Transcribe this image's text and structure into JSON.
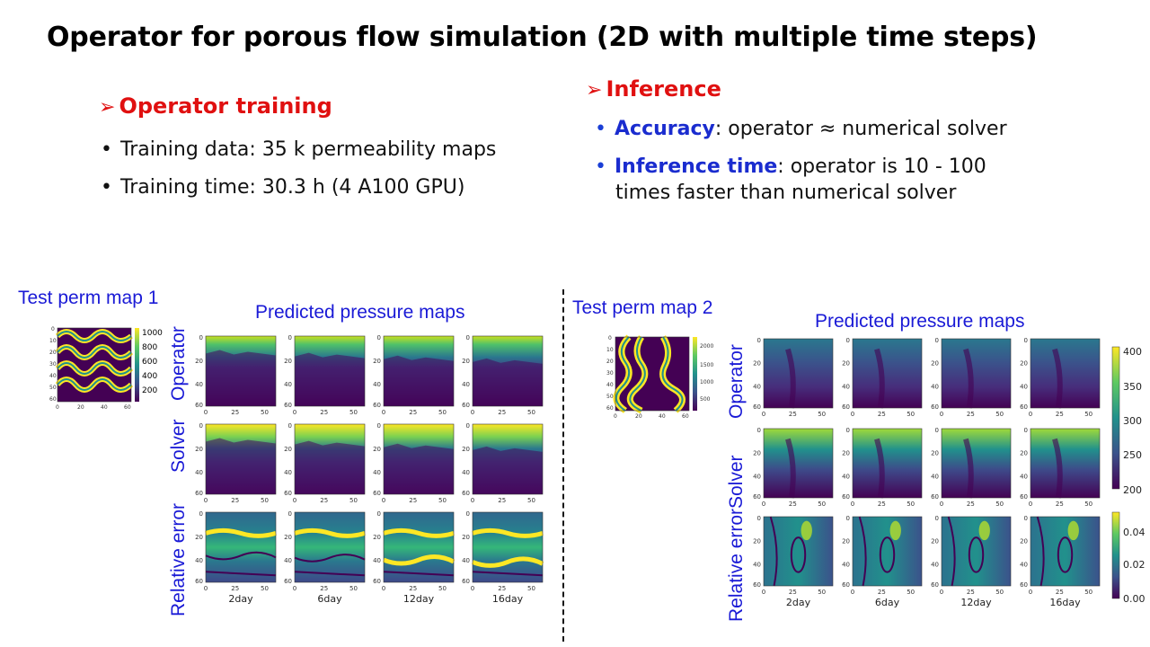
{
  "title": "Operator for porous flow simulation (2D with multiple time steps)",
  "training": {
    "heading": "Operator training",
    "bullets": [
      "Training data: 35 k permeability maps",
      "Training time: 30.3 h (4 A100 GPU)"
    ]
  },
  "inference": {
    "heading": "Inference",
    "items": [
      {
        "kw": "Accuracy",
        "rest": ": operator ≈ numerical solver"
      },
      {
        "kw": "Inference time",
        "rest": ": operator is 10 - 100",
        "rest2": "times faster than numerical solver"
      }
    ]
  },
  "left_panel": {
    "perm_label": "Test perm map 1",
    "pred_label": "Predicted pressure maps",
    "row_labels": {
      "operator": "Operator",
      "solver": "Solver",
      "error": "Relative error"
    },
    "perm_colorbar_ticks": [
      "1000",
      "800",
      "600",
      "400",
      "200"
    ],
    "perm_axis_y": [
      "0",
      "10",
      "20",
      "30",
      "40",
      "50",
      "60"
    ],
    "perm_axis_x": [
      "0",
      "20",
      "40",
      "60"
    ]
  },
  "right_panel": {
    "perm_label": "Test perm map 2",
    "pred_label": "Predicted pressure maps",
    "row_labels": {
      "operator": "Operator",
      "solver": "Solver",
      "error": "Relative error"
    },
    "perm_colorbar_ticks": [
      "2000",
      "1500",
      "1000",
      "500"
    ],
    "perm_axis_y": [
      "0",
      "10",
      "20",
      "30",
      "40",
      "50",
      "60"
    ],
    "perm_axis_x": [
      "0",
      "20",
      "40",
      "60"
    ],
    "pressure_colorbar_ticks": [
      "400",
      "350",
      "300",
      "250",
      "200"
    ],
    "error_colorbar_ticks": [
      "0.04",
      "0.02",
      "0.00"
    ]
  },
  "map_axis_y": [
    "0",
    "20",
    "40",
    "60"
  ],
  "map_axis_x": [
    "0",
    "25",
    "50"
  ],
  "days": [
    "2day",
    "6day",
    "12day",
    "16day"
  ],
  "colors": {
    "title": "#000000",
    "heading": "#e01010",
    "keyword": "#1a2ccf",
    "label_blue": "#1a1ad6"
  }
}
